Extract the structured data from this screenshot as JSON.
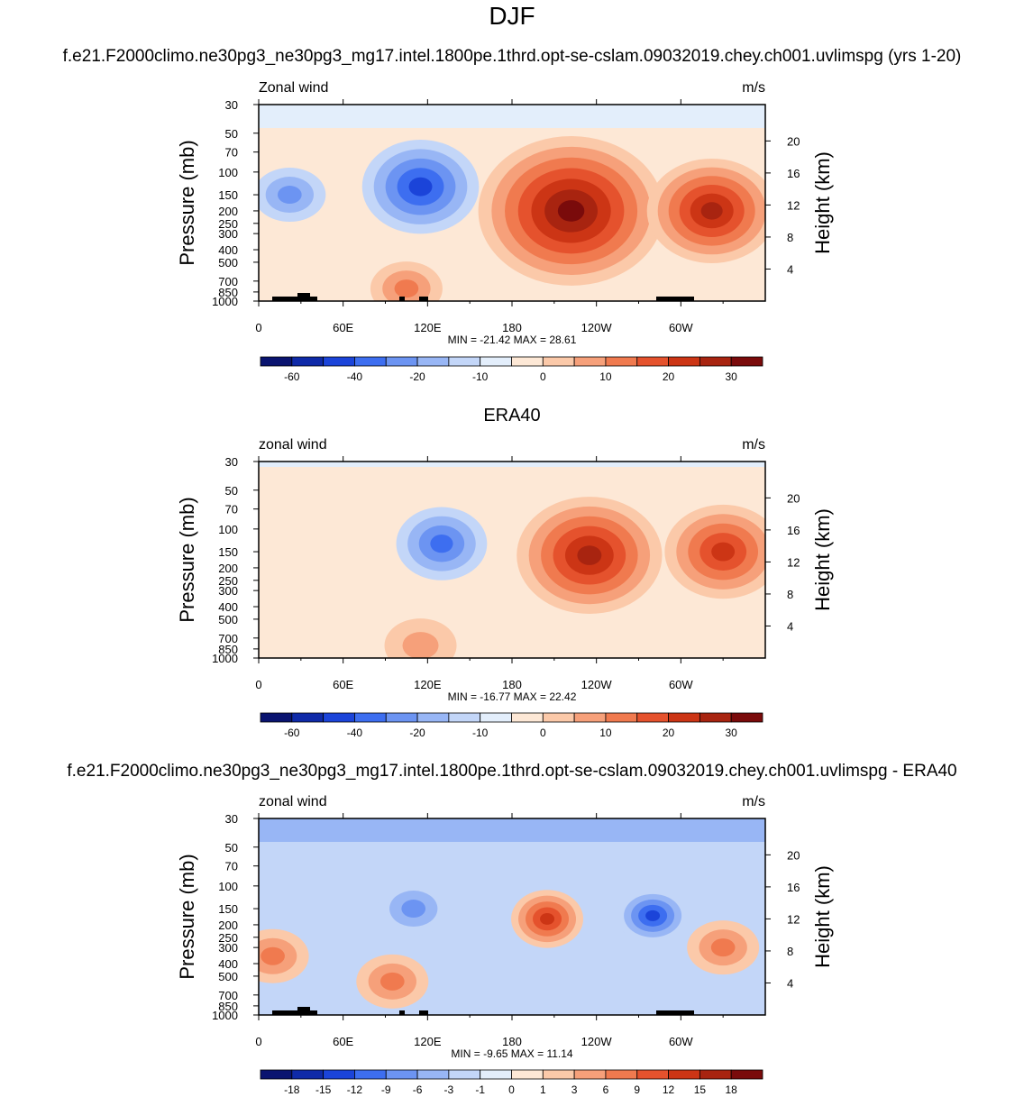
{
  "figure": {
    "title": "DJF",
    "subtitle_top": "f.e21.F2000climo.ne30pg3_ne30pg3_mg17.intel.1800pe.1thrd.opt-se-cslam.09032019.chey.ch001.uvlimspg (yrs 1-20)",
    "subtitle_middle": "ERA40",
    "subtitle_bottom": "f.e21.F2000climo.ne30pg3_ne30pg3_mg17.intel.1800pe.1thrd.opt-se-cslam.09032019.chey.ch001.uvlimspg - ERA40"
  },
  "chart_data": [
    {
      "type": "heatmap",
      "title": "Zonal wind",
      "units": "m/s",
      "ylabel": "Pressure (mb)",
      "ylabel_right": "Height (km)",
      "x_ticks": [
        "0",
        "60E",
        "120E",
        "180",
        "120W",
        "60W"
      ],
      "x_range_deg": [
        0,
        360
      ],
      "y_ticks": [
        "30",
        "50",
        "70",
        "100",
        "150",
        "200",
        "250",
        "300",
        "400",
        "500",
        "700",
        "850",
        "1000"
      ],
      "y_ticks_right": [
        "20",
        "16",
        "12",
        "8",
        "4"
      ],
      "stats": "MIN = -21.42  MAX =  28.61",
      "colorbar_labels": [
        "-60",
        "-40",
        "-20",
        "-10",
        "0",
        "10",
        "20",
        "30"
      ],
      "colorbar_colors": [
        "#0a1470",
        "#0f2aa8",
        "#1b44d9",
        "#3d6ef0",
        "#6c94f2",
        "#98b6f5",
        "#c3d6f8",
        "#e3eefb",
        "#fde8d6",
        "#fbc9a9",
        "#f6a07a",
        "#f07a4f",
        "#e5522d",
        "#cc3515",
        "#a82410",
        "#7a0b0b"
      ],
      "features": [
        {
          "kind": "jet",
          "lon": 222,
          "p": 200,
          "value": 28.6
        },
        {
          "kind": "jet",
          "lon": 322,
          "p": 200,
          "value": 20
        },
        {
          "kind": "jet",
          "lon": 115,
          "p": 130,
          "value": -18
        },
        {
          "kind": "jet",
          "lon": 105,
          "p": 800,
          "value": 8
        },
        {
          "kind": "jet",
          "lon": 22,
          "p": 150,
          "value": -8
        }
      ]
    },
    {
      "type": "heatmap",
      "title": "zonal wind",
      "units": "m/s",
      "ylabel": "Pressure (mb)",
      "ylabel_right": "Height (km)",
      "x_ticks": [
        "0",
        "60E",
        "120E",
        "180",
        "120W",
        "60W"
      ],
      "x_range_deg": [
        0,
        360
      ],
      "y_ticks": [
        "30",
        "50",
        "70",
        "100",
        "150",
        "200",
        "250",
        "300",
        "400",
        "500",
        "700",
        "850",
        "1000"
      ],
      "y_ticks_right": [
        "20",
        "16",
        "12",
        "8",
        "4"
      ],
      "stats": "MIN = -16.77  MAX =  22.42",
      "colorbar_labels": [
        "-60",
        "-40",
        "-20",
        "-10",
        "0",
        "10",
        "20",
        "30"
      ],
      "colorbar_colors": [
        "#0a1470",
        "#0f2aa8",
        "#1b44d9",
        "#3d6ef0",
        "#6c94f2",
        "#98b6f5",
        "#c3d6f8",
        "#e3eefb",
        "#fde8d6",
        "#fbc9a9",
        "#f6a07a",
        "#f07a4f",
        "#e5522d",
        "#cc3515",
        "#a82410",
        "#7a0b0b"
      ],
      "features": [
        {
          "kind": "jet",
          "lon": 235,
          "p": 160,
          "value": 22.4
        },
        {
          "kind": "jet",
          "lon": 330,
          "p": 150,
          "value": 18
        },
        {
          "kind": "jet",
          "lon": 130,
          "p": 130,
          "value": -14
        },
        {
          "kind": "jet",
          "lon": 115,
          "p": 800,
          "value": 5
        }
      ]
    },
    {
      "type": "heatmap",
      "title": "zonal wind",
      "units": "m/s",
      "ylabel": "Pressure (mb)",
      "ylabel_right": "Height (km)",
      "x_ticks": [
        "0",
        "60E",
        "120E",
        "180",
        "120W",
        "60W"
      ],
      "x_range_deg": [
        0,
        360
      ],
      "y_ticks": [
        "30",
        "50",
        "70",
        "100",
        "150",
        "200",
        "250",
        "300",
        "400",
        "500",
        "700",
        "850",
        "1000"
      ],
      "y_ticks_right": [
        "20",
        "16",
        "12",
        "8",
        "4"
      ],
      "stats": "MIN = -9.65  MAX =  11.14",
      "colorbar_labels": [
        "-18",
        "-15",
        "-12",
        "-9",
        "-6",
        "-3",
        "-1",
        "0",
        "1",
        "3",
        "6",
        "9",
        "12",
        "15",
        "18"
      ],
      "colorbar_colors": [
        "#0a1470",
        "#0f2aa8",
        "#1b44d9",
        "#3d6ef0",
        "#6c94f2",
        "#98b6f5",
        "#c3d6f8",
        "#e3eefb",
        "#fde8d6",
        "#fbc9a9",
        "#f6a07a",
        "#f07a4f",
        "#e5522d",
        "#cc3515",
        "#a82410",
        "#7a0b0b"
      ],
      "features": [
        {
          "kind": "jet",
          "lon": 205,
          "p": 180,
          "value": 11.1
        },
        {
          "kind": "jet",
          "lon": 280,
          "p": 170,
          "value": -9.6
        },
        {
          "kind": "jet",
          "lon": 110,
          "p": 150,
          "value": -6
        },
        {
          "kind": "jet",
          "lon": 330,
          "p": 300,
          "value": 5
        },
        {
          "kind": "jet",
          "lon": 10,
          "p": 350,
          "value": 5
        },
        {
          "kind": "jet",
          "lon": 95,
          "p": 550,
          "value": 5
        }
      ]
    }
  ]
}
